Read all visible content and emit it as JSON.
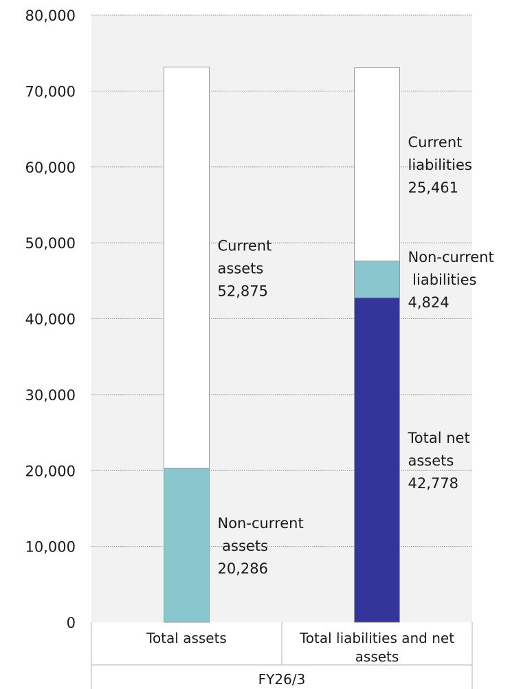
{
  "chart_data": {
    "type": "bar",
    "stacked": true,
    "ylim": [
      0,
      80000
    ],
    "yticks": [
      "0",
      "10,000",
      "20,000",
      "30,000",
      "40,000",
      "50,000",
      "60,000",
      "70,000",
      "80,000"
    ],
    "ytick_values": [
      0,
      10000,
      20000,
      30000,
      40000,
      50000,
      60000,
      70000,
      80000
    ],
    "grid": true,
    "group_label": "FY26/3",
    "categories": [
      {
        "lines": [
          "Total assets"
        ]
      },
      {
        "lines": [
          "Total liabilities and net",
          "assets"
        ]
      }
    ],
    "bars": [
      {
        "category": "Total assets",
        "segments": [
          {
            "lines": [
              "Non-current",
              " assets",
              "20,286"
            ],
            "value": 20286,
            "color": "#8ac6cd"
          },
          {
            "lines": [
              "Current",
              "assets",
              "52,875"
            ],
            "value": 52875,
            "color": "#ffffff"
          }
        ]
      },
      {
        "category": "Total liabilities and net assets",
        "segments": [
          {
            "lines": [
              "Total net",
              "assets",
              "42,778"
            ],
            "value": 42778,
            "color": "#33359a"
          },
          {
            "lines": [
              "Non-current",
              " liabilities",
              "4,824"
            ],
            "value": 4824,
            "color": "#8ac6cd"
          },
          {
            "lines": [
              "Current",
              "liabilities",
              "25,461"
            ],
            "value": 25461,
            "color": "#ffffff"
          }
        ]
      }
    ],
    "colors": {
      "plot_background": "#f2f2f2",
      "gridline": "#8c8c8c",
      "bar_border": "#9a9a9a"
    }
  }
}
